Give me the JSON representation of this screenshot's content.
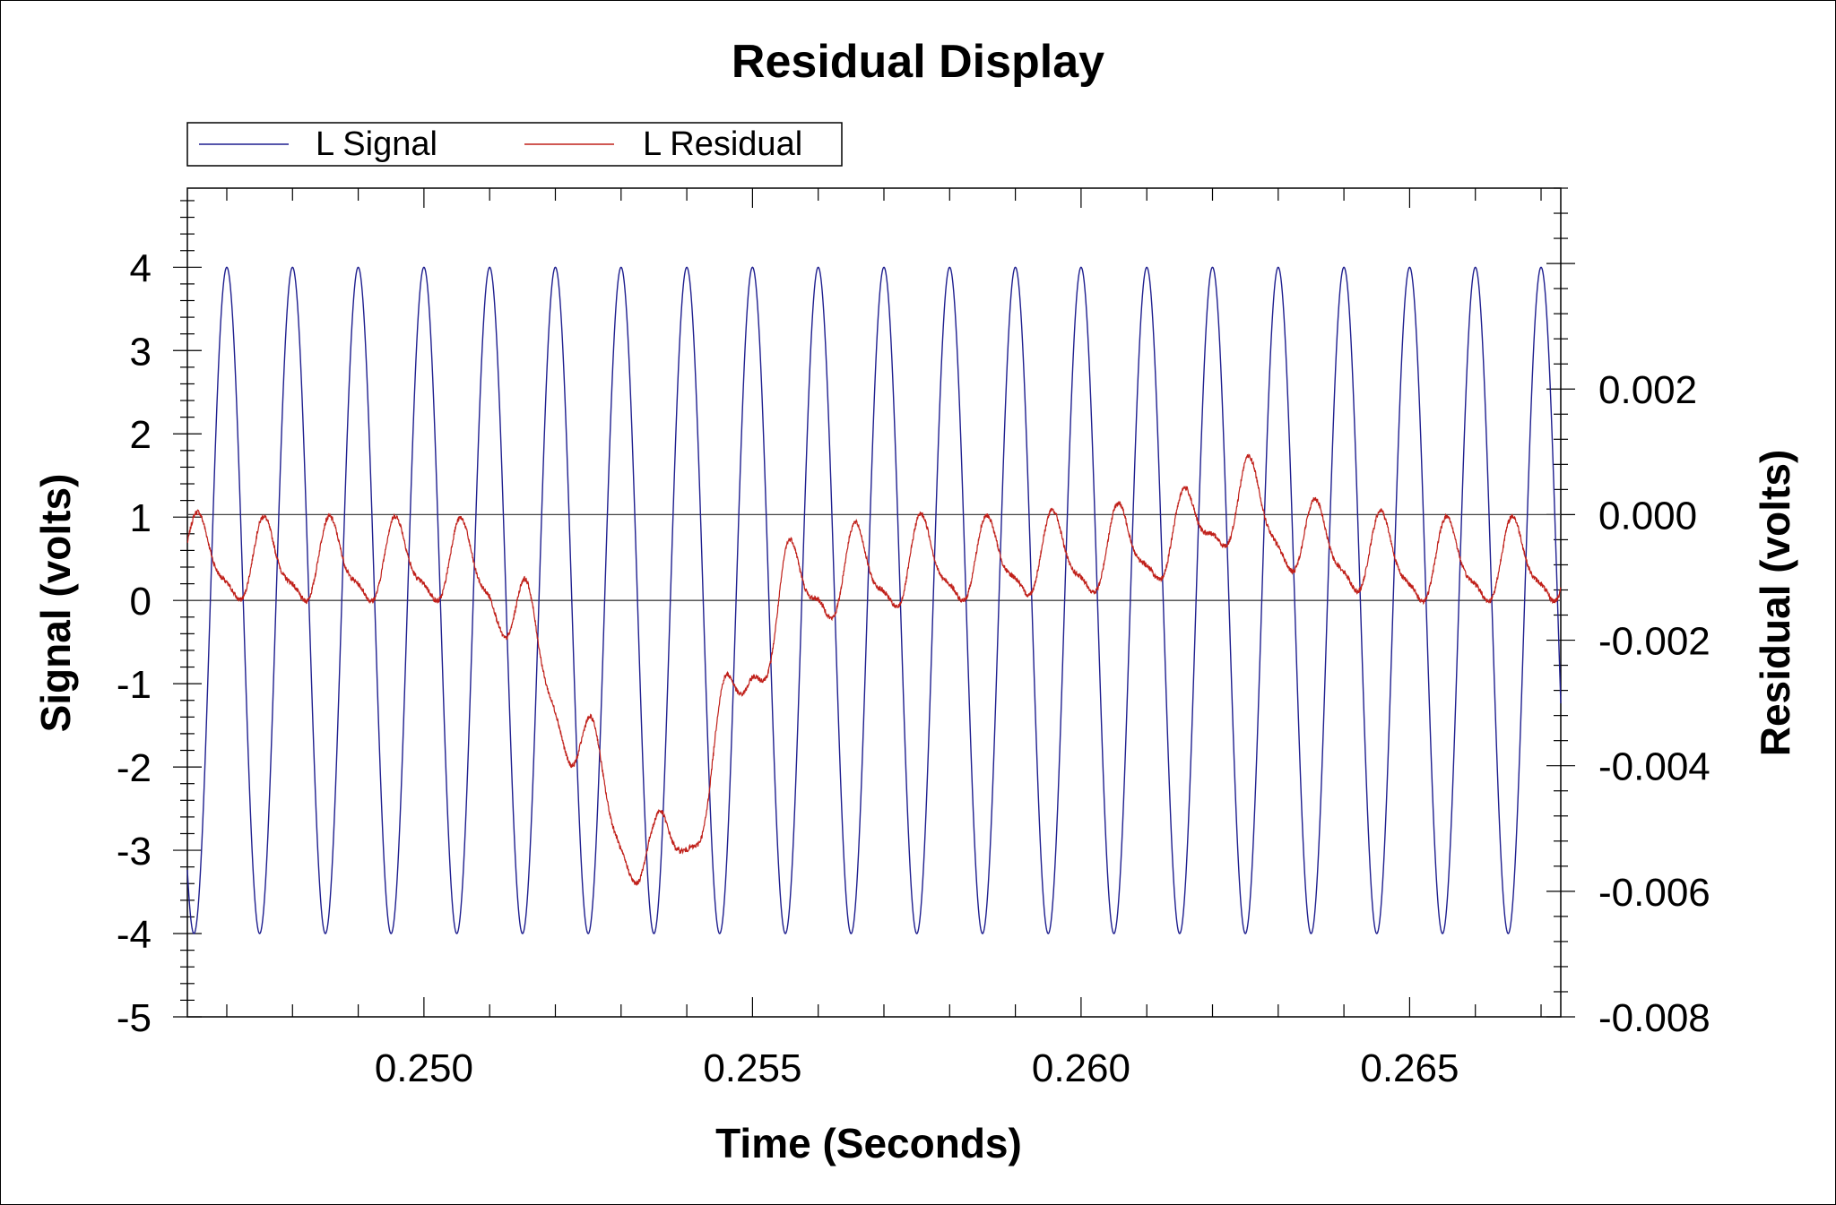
{
  "chart_data": {
    "type": "line",
    "title": "Residual Display",
    "xlabel": "Time (Seconds)",
    "ylabel": "Signal (volts)",
    "y2label": "Residual (volts)",
    "xlim": [
      0.2464,
      0.2673
    ],
    "ylim": [
      -5,
      4.95
    ],
    "y2lim": [
      -0.008,
      0.0052
    ],
    "x_ticks": [
      0.25,
      0.255,
      0.26,
      0.265
    ],
    "x_tick_labels": [
      "0.250",
      "0.255",
      "0.260",
      "0.265"
    ],
    "y_ticks": [
      4,
      3,
      2,
      1,
      0,
      -1,
      -2,
      -3,
      -4,
      -5
    ],
    "y_tick_labels": [
      "4",
      "3",
      "2",
      "1",
      "0",
      "-1",
      "-2",
      "-3",
      "-4",
      "-5"
    ],
    "y2_ticks": [
      0.002,
      0.0,
      -0.002,
      -0.004,
      -0.006,
      -0.008
    ],
    "y2_tick_labels": [
      "0.002",
      "0.000",
      "-0.002",
      "-0.004",
      "-0.006",
      "-0.008"
    ],
    "legend_position": "top-left",
    "grid": false,
    "reference_lines": [
      {
        "axis": "y",
        "value": 0
      },
      {
        "axis": "y2",
        "value": 0.0
      }
    ],
    "series": [
      {
        "name": "L Signal",
        "axis": "left",
        "color": "#1f1f8f",
        "form": "sine",
        "amplitude": 4,
        "frequency_hz": 1000,
        "first_peak_s": 0.247,
        "x_start": 0.2464,
        "x_end": 0.2673
      },
      {
        "name": "L Residual",
        "axis": "right",
        "color": "#c0201a",
        "x": [
          0.2464,
          0.2466,
          0.247,
          0.2475,
          0.248,
          0.2485,
          0.249,
          0.2495,
          0.25,
          0.2505,
          0.251,
          0.2515,
          0.252,
          0.2525,
          0.253,
          0.2535,
          0.254,
          0.2545,
          0.255,
          0.2555,
          0.256,
          0.2565,
          0.257,
          0.2575,
          0.258,
          0.2585,
          0.259,
          0.2595,
          0.26,
          0.2605,
          0.261,
          0.2615,
          0.262,
          0.2625,
          0.263,
          0.2635,
          0.264,
          0.2645,
          0.265,
          0.2655,
          0.266,
          0.2665,
          0.267,
          0.2673
        ],
        "mean": [
          -0.0006,
          -0.0007,
          -0.0008,
          -0.0008,
          -0.0008,
          -0.0008,
          -0.0008,
          -0.0008,
          -0.0008,
          -0.0008,
          -0.001,
          -0.0018,
          -0.0028,
          -0.004,
          -0.005,
          -0.0056,
          -0.005,
          -0.0038,
          -0.0022,
          -0.0014,
          -0.001,
          -0.001,
          -0.0009,
          -0.0008,
          -0.0008,
          -0.0008,
          -0.0007,
          -0.0007,
          -0.0007,
          -0.0006,
          -0.0005,
          -0.0004,
          0.0,
          0.0002,
          -0.0002,
          -0.0005,
          -0.0006,
          -0.0007,
          -0.0008,
          -0.0008,
          -0.0008,
          -0.0008,
          -0.0008,
          -0.0008
        ],
        "swing": [
          0.0015,
          0.0015,
          0.0015,
          0.0016,
          0.0016,
          0.0016,
          0.0016,
          0.0016,
          0.0016,
          0.0016,
          0.0016,
          0.0018,
          0.0018,
          0.0018,
          0.0018,
          0.0016,
          0.0018,
          0.002,
          0.002,
          0.002,
          0.0018,
          0.0018,
          0.0017,
          0.0017,
          0.0016,
          0.0016,
          0.0016,
          0.0016,
          0.0016,
          0.0016,
          0.0016,
          0.0016,
          0.0016,
          0.0016,
          0.0016,
          0.0016,
          0.0016,
          0.0016,
          0.0016,
          0.0016,
          0.0016,
          0.0016,
          0.0016,
          0.0016
        ]
      }
    ]
  }
}
